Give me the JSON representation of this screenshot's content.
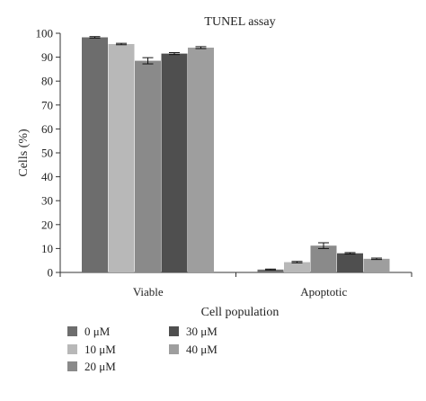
{
  "chart_data": {
    "type": "bar",
    "title": "TUNEL assay",
    "xlabel": "Cell population",
    "ylabel": "Cells (%)",
    "ylim": [
      0,
      100
    ],
    "yticks": [
      0,
      10,
      20,
      30,
      40,
      50,
      60,
      70,
      80,
      90,
      100
    ],
    "categories": [
      "Viable",
      "Apoptotic"
    ],
    "legend_position": "bottom",
    "grid": false,
    "series": [
      {
        "name": "0 μM",
        "color": "#6d6d6d",
        "values": [
          98.3,
          1.2
        ],
        "errors": [
          0.3,
          0.2
        ]
      },
      {
        "name": "10 μM",
        "color": "#b8b8b8",
        "values": [
          95.5,
          4.3
        ],
        "errors": [
          0.3,
          0.3
        ]
      },
      {
        "name": "20 μM",
        "color": "#8a8a8a",
        "values": [
          88.5,
          11.2
        ],
        "errors": [
          1.3,
          1.2
        ]
      },
      {
        "name": "30 μM",
        "color": "#4f4f4f",
        "values": [
          91.5,
          8.0
        ],
        "errors": [
          0.4,
          0.3
        ]
      },
      {
        "name": "40 μM",
        "color": "#9e9e9e",
        "values": [
          94.0,
          5.7
        ],
        "errors": [
          0.4,
          0.3
        ]
      }
    ]
  }
}
